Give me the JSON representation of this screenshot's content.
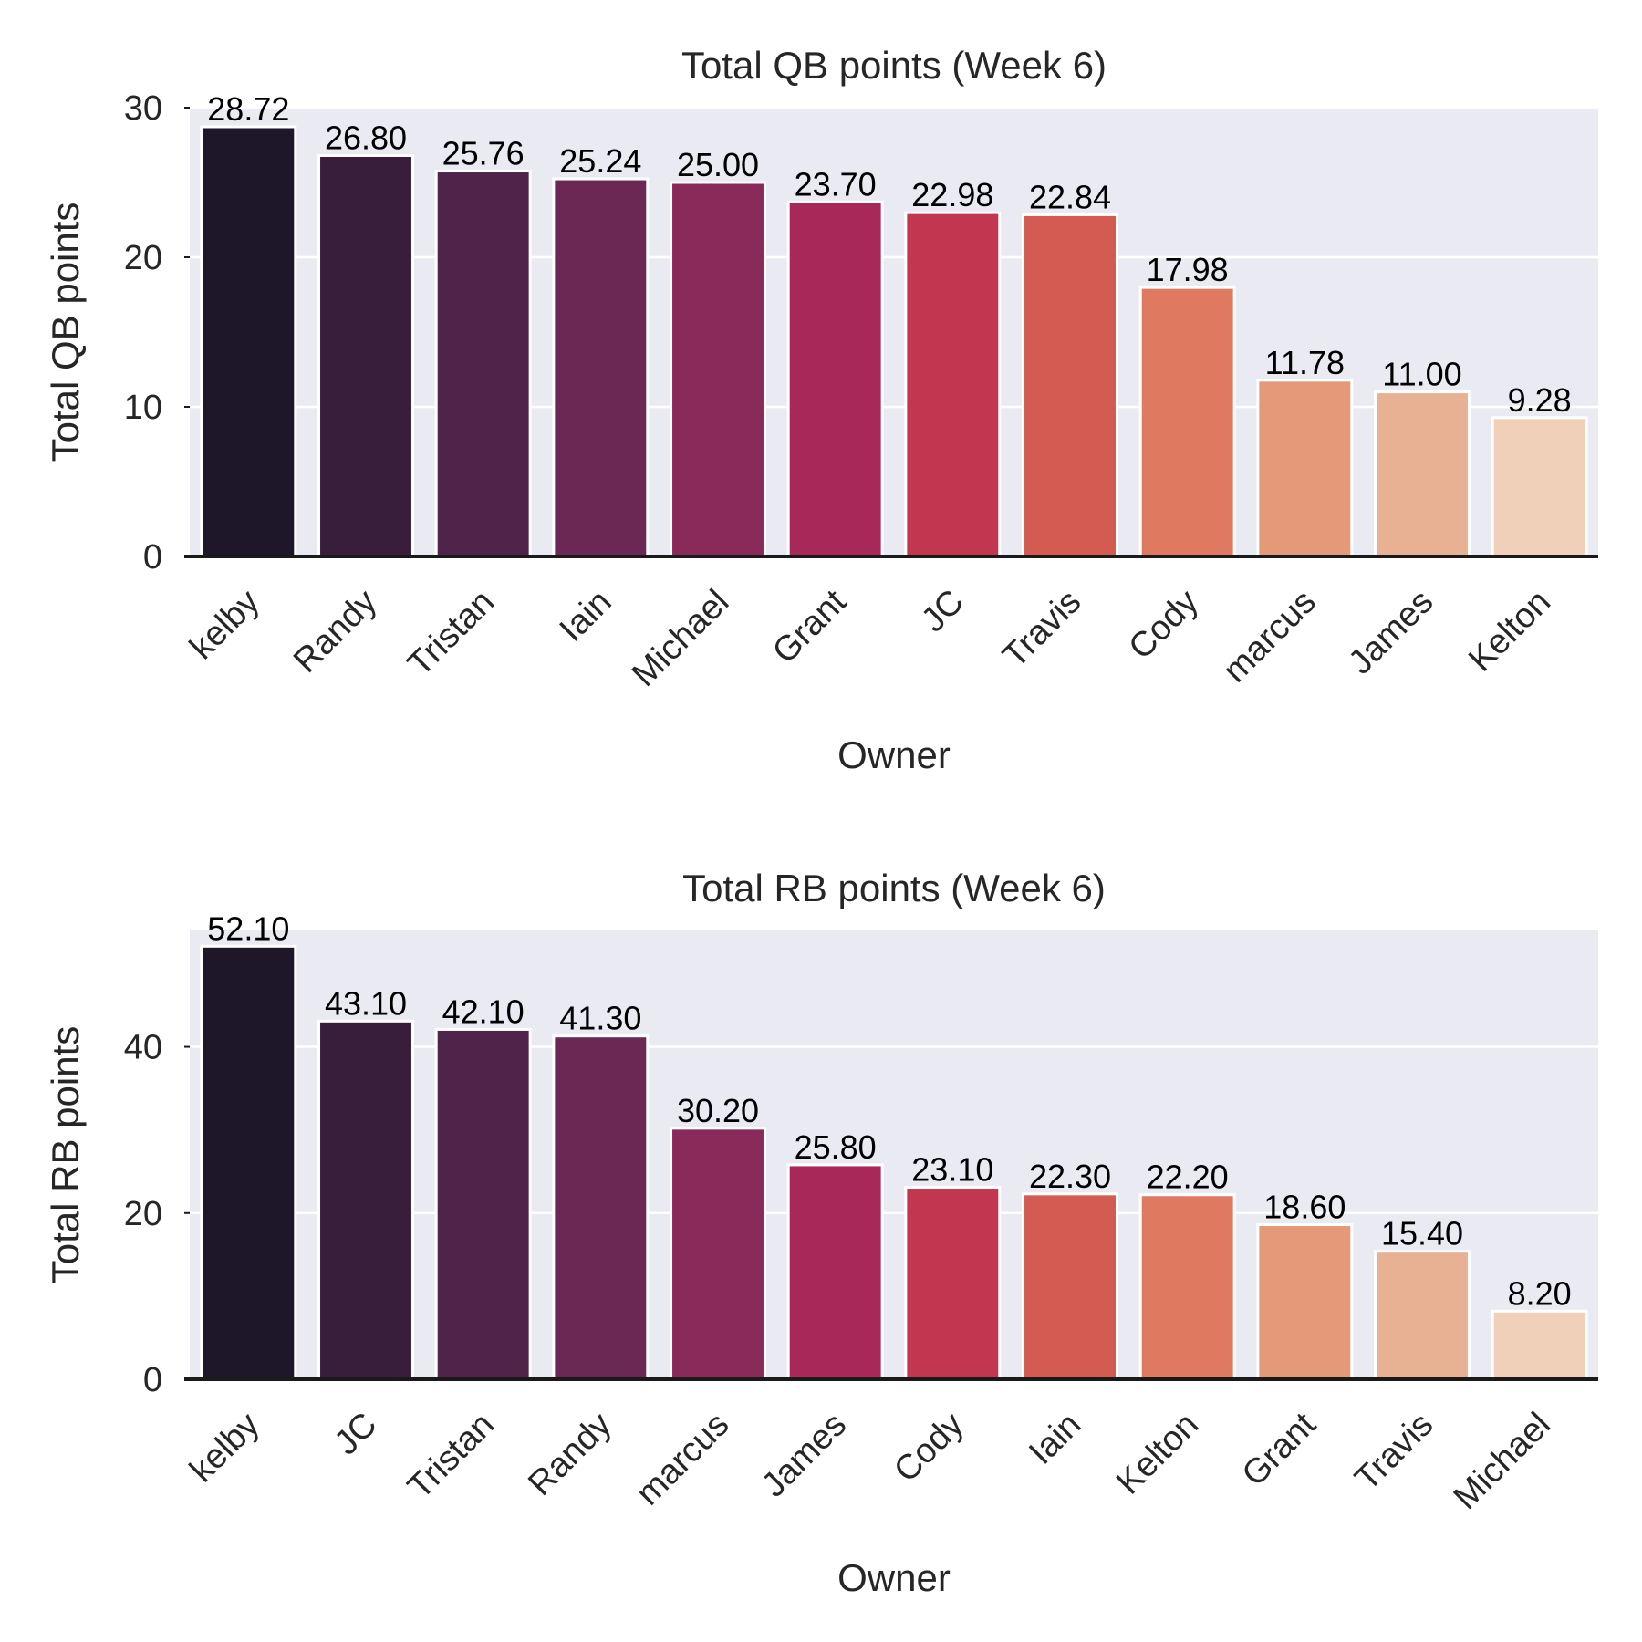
{
  "chart_data": [
    {
      "type": "bar",
      "title": "Total QB points (Week 6)",
      "xlabel": "Owner",
      "ylabel": "Total QB points",
      "ylim": [
        0,
        30
      ],
      "yticks": [
        0,
        10,
        20,
        30
      ],
      "grid": true,
      "categories": [
        "kelby",
        "Randy",
        "Tristan",
        "Iain",
        "Michael",
        "Grant",
        "JC",
        "Travis",
        "Cody",
        "marcus",
        "James",
        "Kelton"
      ],
      "values": [
        28.72,
        26.8,
        25.76,
        25.24,
        25.0,
        23.7,
        22.98,
        22.84,
        17.98,
        11.78,
        11.0,
        9.28
      ],
      "value_labels": [
        "28.72",
        "26.80",
        "25.76",
        "25.24",
        "25.00",
        "23.70",
        "22.98",
        "22.84",
        "17.98",
        "11.78",
        "11.00",
        "9.28"
      ]
    },
    {
      "type": "bar",
      "title": "Total RB points (Week 6)",
      "xlabel": "Owner",
      "ylabel": "Total RB points",
      "ylim": [
        0,
        54
      ],
      "yticks": [
        0,
        20,
        40
      ],
      "grid": true,
      "categories": [
        "kelby",
        "JC",
        "Tristan",
        "Randy",
        "marcus",
        "James",
        "Cody",
        "Iain",
        "Kelton",
        "Grant",
        "Travis",
        "Michael"
      ],
      "values": [
        52.1,
        43.1,
        42.1,
        41.3,
        30.2,
        25.8,
        23.1,
        22.3,
        22.2,
        18.6,
        15.4,
        8.2
      ],
      "value_labels": [
        "52.10",
        "43.10",
        "42.10",
        "41.30",
        "30.20",
        "25.80",
        "23.10",
        "22.30",
        "22.20",
        "18.60",
        "15.40",
        "8.20"
      ]
    }
  ],
  "palette": [
    "#1e1729",
    "#381e3a",
    "#50234a",
    "#6b2854",
    "#8a2a5a",
    "#a8285a",
    "#c2364f",
    "#d45b52",
    "#df7a61",
    "#e49979",
    "#e8b193",
    "#f0d0b8"
  ],
  "style": {
    "plot_bg": "#eaeaf2",
    "grid_color": "#ffffff",
    "axis_color": "#1a1a1a",
    "text_color": "#262626"
  }
}
